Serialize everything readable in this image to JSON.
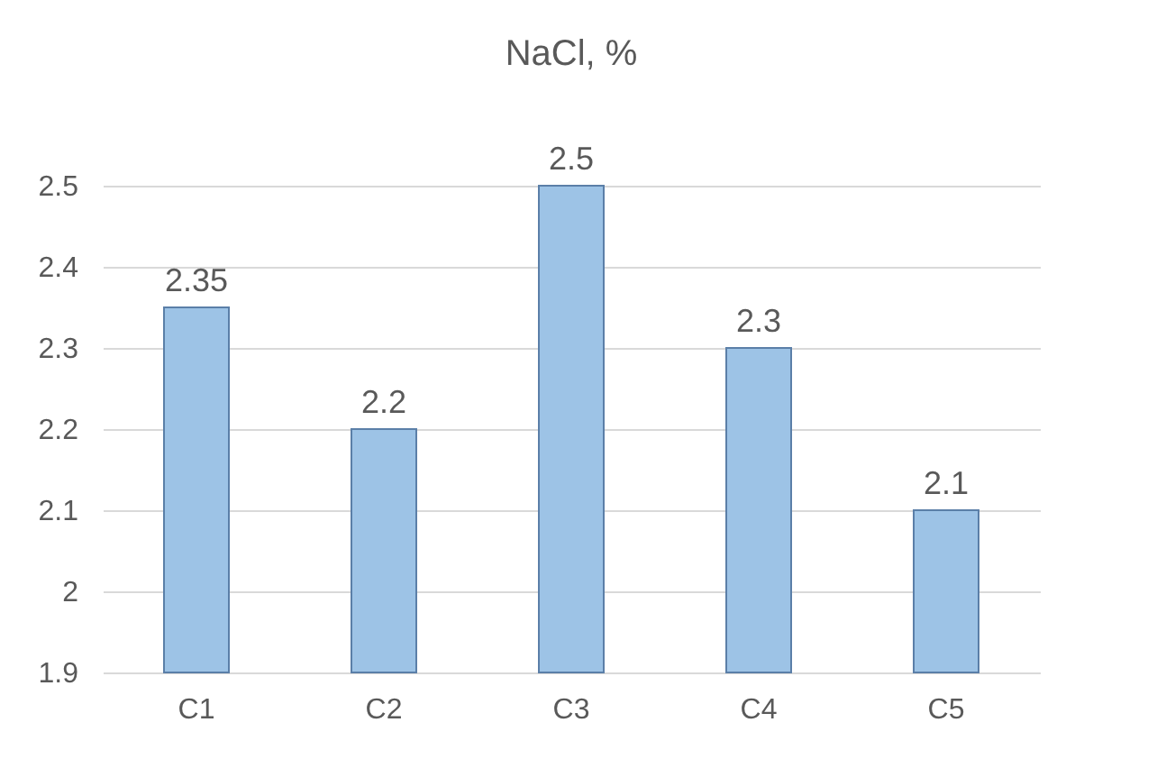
{
  "chart_data": {
    "type": "bar",
    "title": "NaCl, %",
    "categories": [
      "C1",
      "C2",
      "C3",
      "C4",
      "C5"
    ],
    "values": [
      2.35,
      2.2,
      2.5,
      2.3,
      2.1
    ],
    "color": "#9dc3e6",
    "ylim": [
      1.9,
      2.5
    ],
    "yticks": [
      1.9,
      2,
      2.1,
      2.2,
      2.3,
      2.4,
      2.5
    ],
    "grid": "y",
    "data_labels": true
  }
}
